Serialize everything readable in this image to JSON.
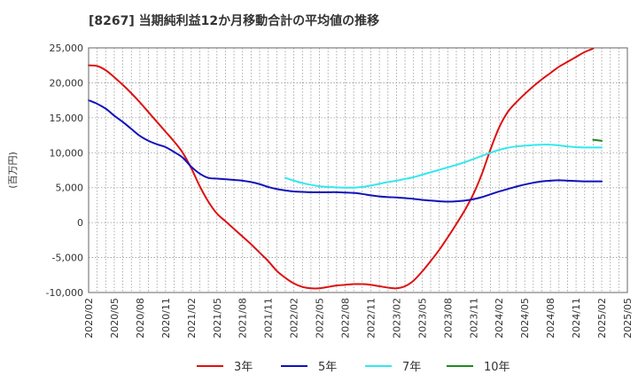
{
  "chart_data": {
    "type": "line",
    "title": "[8267]  当期純利益12か月移動合計の平均値の推移",
    "ylabel": "(百万円)",
    "ylim": [
      -10000,
      25000
    ],
    "yticks": [
      -10000,
      -5000,
      0,
      5000,
      10000,
      15000,
      20000,
      25000
    ],
    "ytick_labels": [
      "-10,000",
      "-5,000",
      "0",
      "5,000",
      "10,000",
      "15,000",
      "20,000",
      "25,000"
    ],
    "xlim": [
      "2020/02",
      "2025/05"
    ],
    "xtick_labels": [
      "2020/02",
      "2020/05",
      "2020/08",
      "2020/11",
      "2021/02",
      "2021/05",
      "2021/08",
      "2021/11",
      "2022/02",
      "2022/05",
      "2022/08",
      "2022/11",
      "2023/02",
      "2023/05",
      "2023/08",
      "2023/11",
      "2024/02",
      "2024/05",
      "2024/08",
      "2024/11",
      "2025/02",
      "2025/05"
    ],
    "grid": true,
    "legend_position": "bottom",
    "series": [
      {
        "name": "3年",
        "color": "#dd1111",
        "points": [
          [
            "2020/02",
            22500
          ],
          [
            "2020/03",
            22400
          ],
          [
            "2020/04",
            21800
          ],
          [
            "2020/05",
            20800
          ],
          [
            "2020/06",
            19700
          ],
          [
            "2020/07",
            18500
          ],
          [
            "2020/08",
            17200
          ],
          [
            "2020/09",
            15800
          ],
          [
            "2020/10",
            14400
          ],
          [
            "2020/11",
            13000
          ],
          [
            "2020/12",
            11600
          ],
          [
            "2021/01",
            10000
          ],
          [
            "2021/02",
            7800
          ],
          [
            "2021/03",
            5200
          ],
          [
            "2021/04",
            3000
          ],
          [
            "2021/05",
            1300
          ],
          [
            "2021/06",
            200
          ],
          [
            "2021/07",
            -900
          ],
          [
            "2021/08",
            -2000
          ],
          [
            "2021/09",
            -3100
          ],
          [
            "2021/10",
            -4300
          ],
          [
            "2021/11",
            -5500
          ],
          [
            "2021/12",
            -6900
          ],
          [
            "2022/01",
            -7900
          ],
          [
            "2022/02",
            -8700
          ],
          [
            "2022/03",
            -9200
          ],
          [
            "2022/04",
            -9400
          ],
          [
            "2022/05",
            -9400
          ],
          [
            "2022/06",
            -9200
          ],
          [
            "2022/07",
            -9000
          ],
          [
            "2022/08",
            -8900
          ],
          [
            "2022/09",
            -8800
          ],
          [
            "2022/10",
            -8800
          ],
          [
            "2022/11",
            -8900
          ],
          [
            "2022/12",
            -9100
          ],
          [
            "2023/01",
            -9300
          ],
          [
            "2023/02",
            -9400
          ],
          [
            "2023/03",
            -9100
          ],
          [
            "2023/04",
            -8300
          ],
          [
            "2023/05",
            -7000
          ],
          [
            "2023/06",
            -5500
          ],
          [
            "2023/07",
            -3900
          ],
          [
            "2023/08",
            -2100
          ],
          [
            "2023/09",
            -200
          ],
          [
            "2023/10",
            1800
          ],
          [
            "2023/11",
            4100
          ],
          [
            "2023/12",
            7000
          ],
          [
            "2024/01",
            10500
          ],
          [
            "2024/02",
            13600
          ],
          [
            "2024/03",
            15800
          ],
          [
            "2024/04",
            17200
          ],
          [
            "2024/05",
            18400
          ],
          [
            "2024/06",
            19500
          ],
          [
            "2024/07",
            20500
          ],
          [
            "2024/08",
            21400
          ],
          [
            "2024/09",
            22300
          ],
          [
            "2024/10",
            23000
          ],
          [
            "2024/11",
            23700
          ],
          [
            "2024/12",
            24400
          ],
          [
            "2025/01",
            24900
          ]
        ]
      },
      {
        "name": "5年",
        "color": "#1111bb",
        "points": [
          [
            "2020/02",
            17500
          ],
          [
            "2020/03",
            17000
          ],
          [
            "2020/04",
            16300
          ],
          [
            "2020/05",
            15300
          ],
          [
            "2020/06",
            14400
          ],
          [
            "2020/07",
            13400
          ],
          [
            "2020/08",
            12400
          ],
          [
            "2020/09",
            11700
          ],
          [
            "2020/10",
            11200
          ],
          [
            "2020/11",
            10800
          ],
          [
            "2020/12",
            10100
          ],
          [
            "2021/01",
            9300
          ],
          [
            "2021/02",
            8000
          ],
          [
            "2021/03",
            7000
          ],
          [
            "2021/04",
            6400
          ],
          [
            "2021/05",
            6300
          ],
          [
            "2021/06",
            6200
          ],
          [
            "2021/07",
            6100
          ],
          [
            "2021/08",
            6000
          ],
          [
            "2021/09",
            5800
          ],
          [
            "2021/10",
            5500
          ],
          [
            "2021/11",
            5100
          ],
          [
            "2021/12",
            4800
          ],
          [
            "2022/01",
            4600
          ],
          [
            "2022/02",
            4450
          ],
          [
            "2022/03",
            4400
          ],
          [
            "2022/04",
            4350
          ],
          [
            "2022/05",
            4350
          ],
          [
            "2022/06",
            4350
          ],
          [
            "2022/07",
            4350
          ],
          [
            "2022/08",
            4300
          ],
          [
            "2022/09",
            4250
          ],
          [
            "2022/10",
            4100
          ],
          [
            "2022/11",
            3900
          ],
          [
            "2022/12",
            3750
          ],
          [
            "2023/01",
            3650
          ],
          [
            "2023/02",
            3600
          ],
          [
            "2023/03",
            3500
          ],
          [
            "2023/04",
            3400
          ],
          [
            "2023/05",
            3250
          ],
          [
            "2023/06",
            3150
          ],
          [
            "2023/07",
            3050
          ],
          [
            "2023/08",
            3000
          ],
          [
            "2023/09",
            3050
          ],
          [
            "2023/10",
            3150
          ],
          [
            "2023/11",
            3350
          ],
          [
            "2023/12",
            3650
          ],
          [
            "2024/01",
            4050
          ],
          [
            "2024/02",
            4450
          ],
          [
            "2024/03",
            4800
          ],
          [
            "2024/04",
            5150
          ],
          [
            "2024/05",
            5450
          ],
          [
            "2024/06",
            5700
          ],
          [
            "2024/07",
            5900
          ],
          [
            "2024/08",
            6000
          ],
          [
            "2024/09",
            6050
          ],
          [
            "2024/10",
            6000
          ],
          [
            "2024/11",
            5950
          ],
          [
            "2024/12",
            5900
          ],
          [
            "2025/01",
            5900
          ],
          [
            "2025/02",
            5900
          ]
        ]
      },
      {
        "name": "7年",
        "color": "#33e8ee",
        "points": [
          [
            "2022/01",
            6400
          ],
          [
            "2022/02",
            6000
          ],
          [
            "2022/03",
            5650
          ],
          [
            "2022/04",
            5400
          ],
          [
            "2022/05",
            5200
          ],
          [
            "2022/06",
            5100
          ],
          [
            "2022/07",
            5050
          ],
          [
            "2022/08",
            5000
          ],
          [
            "2022/09",
            5000
          ],
          [
            "2022/10",
            5100
          ],
          [
            "2022/11",
            5300
          ],
          [
            "2022/12",
            5550
          ],
          [
            "2023/01",
            5800
          ],
          [
            "2023/02",
            6000
          ],
          [
            "2023/03",
            6250
          ],
          [
            "2023/04",
            6500
          ],
          [
            "2023/05",
            6850
          ],
          [
            "2023/06",
            7200
          ],
          [
            "2023/07",
            7550
          ],
          [
            "2023/08",
            7900
          ],
          [
            "2023/09",
            8250
          ],
          [
            "2023/10",
            8650
          ],
          [
            "2023/11",
            9100
          ],
          [
            "2023/12",
            9550
          ],
          [
            "2024/01",
            10000
          ],
          [
            "2024/02",
            10400
          ],
          [
            "2024/03",
            10700
          ],
          [
            "2024/04",
            10900
          ],
          [
            "2024/05",
            11000
          ],
          [
            "2024/06",
            11100
          ],
          [
            "2024/07",
            11150
          ],
          [
            "2024/08",
            11150
          ],
          [
            "2024/09",
            11050
          ],
          [
            "2024/10",
            10900
          ],
          [
            "2024/11",
            10800
          ],
          [
            "2024/12",
            10750
          ],
          [
            "2025/01",
            10750
          ],
          [
            "2025/02",
            10750
          ]
        ]
      },
      {
        "name": "10年",
        "color": "#228822",
        "points": [
          [
            "2025/01",
            11850
          ],
          [
            "2025/02",
            11700
          ]
        ]
      }
    ]
  }
}
